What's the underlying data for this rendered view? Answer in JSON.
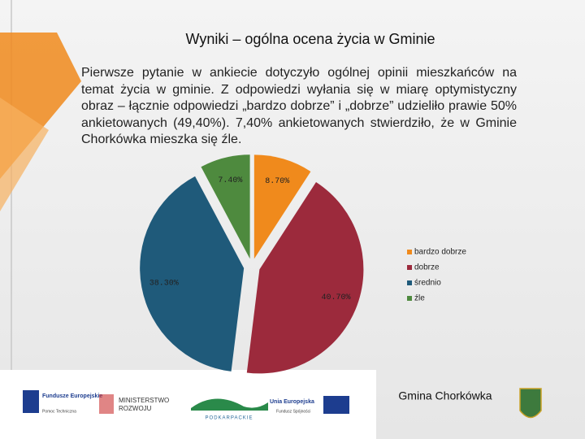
{
  "title": "Wyniki – ogólna ocena życia w Gminie",
  "paragraph": "Pierwsze pytanie w ankiecie dotyczyło ogólnej opinii mieszkańców na temat życia w gminie. Z odpowiedzi wyłania się w miarę optymistyczny obraz – łącznie odpowiedzi „bardzo dobrze” i „dobrze” udzieliło prawie 50% ankietowanych (49,40%). 7,40% ankietowanych stwierdziło, że w Gminie Chorkówka mieszka się źle.",
  "chart_data": {
    "type": "pie",
    "categories": [
      "bardzo dobrze",
      "dobrze",
      "średnio",
      "źle"
    ],
    "values": [
      8.7,
      40.7,
      38.3,
      7.4
    ],
    "value_labels": [
      "8.70%",
      "40.70%",
      "38.30%",
      "7.40%"
    ],
    "colors": [
      "#f08a1c",
      "#9c2a3c",
      "#1f5a7a",
      "#4e8a3e"
    ],
    "legend": "right"
  },
  "footer": {
    "logos": [
      "Fundusze Europejskie",
      "Pomoc Techniczna",
      "MINISTERSTWO",
      "ROZWOJU",
      "PODKARPACKIE",
      "Unia Europejska",
      "Fundusz Spójności"
    ],
    "municipality": "Gmina Chorkówka"
  }
}
